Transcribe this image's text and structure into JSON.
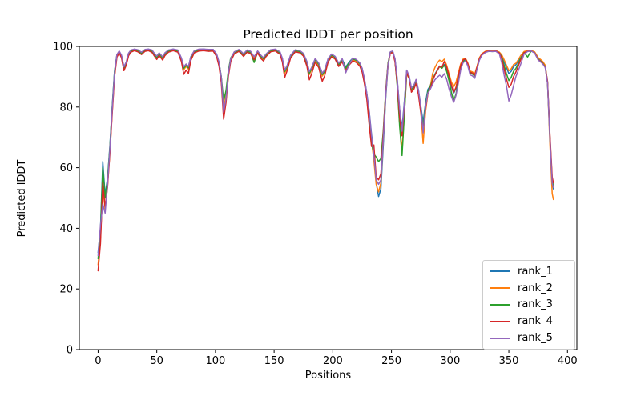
{
  "figure": {
    "title": "Predicted lDDT per position",
    "xlabel": "Positions",
    "ylabel": "Predicted lDDT"
  },
  "chart_data": {
    "type": "line",
    "title": "Predicted lDDT per position",
    "xlabel": "Positions",
    "ylabel": "Predicted lDDT",
    "xlim": [
      -16,
      408
    ],
    "ylim": [
      0,
      100
    ],
    "xticks": [
      0,
      50,
      100,
      150,
      200,
      250,
      300,
      350,
      400
    ],
    "yticks": [
      0,
      20,
      40,
      60,
      80,
      100
    ],
    "grid": false,
    "legend_position": "lower right",
    "x": [
      0,
      2,
      4,
      6,
      8,
      10,
      12,
      14,
      16,
      18,
      20,
      22,
      24,
      26,
      28,
      31,
      34,
      37,
      40,
      43,
      46,
      48,
      50,
      52,
      55,
      57,
      60,
      64,
      68,
      71,
      73,
      75,
      77,
      79,
      82,
      86,
      90,
      94,
      98,
      101,
      103,
      105,
      107,
      109,
      111,
      113,
      116,
      120,
      124,
      127,
      130,
      133,
      136,
      139,
      141,
      143,
      147,
      151,
      155,
      157,
      159,
      161,
      164,
      168,
      172,
      175,
      178,
      180,
      182,
      185,
      188,
      191,
      193,
      196,
      199,
      202,
      205,
      208,
      211,
      214,
      217,
      220,
      223,
      225,
      227,
      229,
      231,
      233,
      235,
      237,
      239,
      241,
      243,
      245,
      247,
      249,
      251,
      253,
      255,
      257,
      259,
      261,
      263,
      265,
      267,
      269,
      271,
      273,
      275,
      277,
      279,
      281,
      283,
      285,
      287,
      289,
      291,
      293,
      295,
      297,
      299,
      301,
      303,
      305,
      307,
      309,
      311,
      313,
      315,
      317,
      319,
      321,
      323,
      325,
      327,
      330,
      333,
      336,
      339,
      342,
      344,
      346,
      348,
      350,
      352,
      354,
      356,
      358,
      360,
      363,
      366,
      369,
      372,
      375,
      377,
      379,
      381,
      383,
      385,
      387,
      388
    ],
    "series": [
      {
        "name": "rank_1",
        "color": "#1f77b4",
        "values": [
          32,
          40,
          62,
          51,
          56.5,
          67,
          80,
          91.8,
          97.2,
          98.4,
          97,
          93.2,
          94.8,
          97.7,
          98.7,
          99.1,
          98.8,
          98,
          98.9,
          99.1,
          98.7,
          97.6,
          96.7,
          97.8,
          96.5,
          97.8,
          98.7,
          99.1,
          98.7,
          96.1,
          93.2,
          94.1,
          93.3,
          96.5,
          98.5,
          99,
          99.1,
          98.9,
          99,
          97.4,
          94.8,
          89.9,
          79,
          83.4,
          91.3,
          95.9,
          98.1,
          98.9,
          97.5,
          98.7,
          98.3,
          96.5,
          98.4,
          96.8,
          96.2,
          97.4,
          98.8,
          99,
          98.1,
          96,
          92.1,
          93.5,
          97,
          98.8,
          98.5,
          97.6,
          94.9,
          91.6,
          93,
          95.9,
          94.4,
          91.1,
          92.1,
          95.9,
          97.4,
          96.6,
          94.4,
          95.8,
          93.2,
          94.9,
          96.1,
          95.6,
          94.5,
          92.7,
          89.2,
          84.5,
          78.6,
          71,
          65,
          55,
          50.5,
          53,
          67,
          82.5,
          93.5,
          98,
          98.4,
          95.8,
          88.7,
          79,
          73,
          82,
          92,
          90.1,
          86.2,
          87,
          89,
          85.5,
          80.3,
          75,
          81.5,
          85.8,
          87,
          89,
          90.8,
          92.2,
          93.5,
          93,
          94,
          92.3,
          89.5,
          86.8,
          84.5,
          86.2,
          90,
          93.6,
          95.4,
          95.8,
          94.3,
          91.7,
          91.4,
          90.7,
          93.4,
          96.1,
          97.5,
          98.3,
          98.6,
          98.5,
          98.6,
          98,
          96.9,
          95,
          93,
          91,
          91.8,
          93.3,
          93.9,
          95.2,
          96.6,
          98.2,
          98.6,
          98.7,
          98.1,
          96.1,
          95.5,
          94.8,
          93.6,
          88.3,
          70.5,
          55.5,
          53
        ]
      },
      {
        "name": "rank_2",
        "color": "#ff7f0e",
        "values": [
          28,
          36.5,
          53,
          46.5,
          54,
          65,
          78,
          90.2,
          96.6,
          98,
          96.4,
          92.4,
          94.1,
          97.2,
          98.3,
          98.8,
          98.4,
          97.5,
          98.6,
          98.8,
          98.2,
          97.1,
          96,
          97.3,
          95.8,
          97.3,
          98.3,
          98.8,
          98.3,
          95.4,
          92.3,
          93.4,
          92.5,
          95.9,
          98.1,
          98.7,
          98.8,
          98.6,
          98.7,
          96.9,
          94.1,
          89,
          79.5,
          83.8,
          90.7,
          95.4,
          97.7,
          98.6,
          97,
          98.3,
          97.8,
          95.9,
          98,
          96.3,
          95.5,
          96.9,
          98.4,
          98.7,
          97.6,
          95.3,
          91.2,
          92.8,
          96.5,
          98.4,
          98.1,
          97.1,
          94.2,
          90.7,
          92.3,
          95.4,
          93.7,
          90.2,
          91.4,
          95.4,
          96.9,
          96.1,
          93.7,
          95.3,
          92.4,
          94.3,
          95.6,
          95.1,
          94,
          92,
          88.3,
          83.4,
          77.2,
          69,
          62.5,
          54.5,
          52,
          55,
          69,
          83.5,
          93.7,
          97.8,
          98.1,
          95.1,
          87,
          74.5,
          65.5,
          78,
          91,
          89.4,
          85.2,
          86.1,
          88.1,
          84.4,
          78.4,
          68,
          78.5,
          84.3,
          86.5,
          91,
          93,
          94.5,
          95.5,
          95,
          95.8,
          93.8,
          91,
          88.3,
          86.6,
          88.2,
          91.3,
          94.3,
          95.8,
          96.1,
          94.6,
          91.9,
          91.6,
          91,
          93.6,
          96.3,
          97.6,
          98.4,
          98.6,
          98.5,
          98.6,
          98.1,
          97.2,
          95.6,
          93.8,
          92,
          92.6,
          94,
          94.4,
          95.6,
          96.9,
          98.3,
          98.6,
          98.7,
          98.2,
          96.3,
          95.7,
          95,
          93.8,
          88,
          68,
          51.5,
          49.5
        ]
      },
      {
        "name": "rank_3",
        "color": "#2ca02c",
        "values": [
          30,
          39,
          60,
          50,
          56,
          66.5,
          79.5,
          91.4,
          97,
          98.2,
          96.7,
          92.9,
          94.5,
          97.5,
          98.5,
          98.9,
          98.6,
          97.7,
          98.7,
          98.9,
          98.5,
          97.4,
          96.4,
          97.6,
          96.2,
          97.6,
          98.5,
          98.9,
          98.5,
          95.8,
          92.8,
          93.8,
          92.9,
          96.2,
          98.3,
          98.8,
          98.9,
          98.7,
          98.8,
          97.2,
          94.6,
          90,
          82,
          85.5,
          92,
          96.2,
          98,
          98.7,
          97.3,
          98.5,
          98,
          94.7,
          98.2,
          96.6,
          95.9,
          97.2,
          98.6,
          98.8,
          97.8,
          95.7,
          91.7,
          93.2,
          96.8,
          98.6,
          98.3,
          97.4,
          94.6,
          91.2,
          92.7,
          95.7,
          94.1,
          90.7,
          91.8,
          95.7,
          97.2,
          96.4,
          94.1,
          95.6,
          92.8,
          94.7,
          95.9,
          95.4,
          94.3,
          92.4,
          88.8,
          84,
          78,
          68,
          64.5,
          63.5,
          62,
          63,
          72,
          85,
          94.5,
          98.1,
          98.3,
          95.3,
          86.5,
          73.5,
          64,
          77.5,
          91.2,
          89.8,
          85.8,
          86.6,
          88.6,
          85,
          79.5,
          73.5,
          80.5,
          85.3,
          86.7,
          89,
          90.8,
          92,
          93.3,
          92.8,
          93.8,
          91.8,
          88.6,
          85,
          82,
          84.3,
          88.8,
          92.9,
          95,
          95.5,
          93.9,
          91.2,
          90.9,
          90.2,
          93,
          95.8,
          97.2,
          98.1,
          98.4,
          98.3,
          98.4,
          97.8,
          96.4,
          93.8,
          91,
          88.7,
          89.8,
          91.8,
          92.7,
          94.3,
          96,
          98,
          96.5,
          98.5,
          97.9,
          95.7,
          95.1,
          94.4,
          93.2,
          87.8,
          70.2,
          55.8,
          54
        ]
      },
      {
        "name": "rank_4",
        "color": "#d62728",
        "values": [
          26,
          35,
          55,
          47,
          53.5,
          64.5,
          77.5,
          89.8,
          96.4,
          97.9,
          96.2,
          92,
          93.8,
          96.9,
          98.1,
          98.6,
          98.2,
          97.3,
          98.4,
          98.6,
          98,
          96.8,
          95.7,
          97,
          95.5,
          97,
          98.1,
          98.6,
          98.1,
          95,
          90.8,
          92.2,
          91.1,
          95.3,
          97.9,
          98.5,
          98.6,
          98.4,
          98.5,
          96.6,
          93.6,
          88,
          76,
          81.5,
          90,
          95,
          97.5,
          98.4,
          96.7,
          98.1,
          97.6,
          95.6,
          97.8,
          95.9,
          95.2,
          96.6,
          98.2,
          98.5,
          97.4,
          94.9,
          89.7,
          91.9,
          96.1,
          98.2,
          97.9,
          96.8,
          93.4,
          89,
          91,
          94.8,
          93,
          88.5,
          90.2,
          94.9,
          96.6,
          95.8,
          93.4,
          94.9,
          92,
          93.9,
          95.2,
          94.7,
          93.5,
          91.5,
          87.6,
          82.5,
          74,
          67,
          67.5,
          57,
          56,
          58,
          71,
          84.5,
          94,
          97.7,
          98,
          94.9,
          87.5,
          76.5,
          70.5,
          80.5,
          91.5,
          89.5,
          84.9,
          85.8,
          87.8,
          84,
          78.2,
          72,
          79.5,
          84.5,
          86,
          88.7,
          90.5,
          92,
          93.5,
          93.2,
          95,
          93.2,
          90.3,
          87.3,
          84.8,
          86.5,
          90.2,
          93.8,
          95.5,
          95.9,
          94.3,
          91.5,
          91.2,
          90.5,
          93.3,
          96,
          97.4,
          98.2,
          98.5,
          98.4,
          98.5,
          97.8,
          96,
          92.5,
          89.3,
          86.5,
          87.5,
          90,
          91.5,
          93.5,
          95.5,
          97.9,
          98.4,
          98.5,
          97.9,
          95.6,
          95,
          94.3,
          93.1,
          88.5,
          71.5,
          57,
          55
        ]
      },
      {
        "name": "rank_5",
        "color": "#9467bd",
        "values": [
          31,
          41,
          48,
          45,
          54.5,
          66,
          79,
          91,
          97.3,
          98.5,
          97.1,
          93.3,
          94.9,
          97.8,
          98.8,
          99.1,
          98.9,
          98.1,
          99,
          99.1,
          98.8,
          97.7,
          96.8,
          97.9,
          96.6,
          97.9,
          98.8,
          99.1,
          98.8,
          96.2,
          93.3,
          94.2,
          93.4,
          96.6,
          98.6,
          99.1,
          99.1,
          99,
          99,
          97.5,
          94.9,
          89.8,
          78.3,
          82.8,
          91.1,
          95.9,
          98.2,
          99,
          97.6,
          98.8,
          98.4,
          96.6,
          98.5,
          97,
          96.3,
          97.5,
          98.9,
          99.1,
          98.2,
          96.1,
          92.2,
          93.6,
          97.1,
          98.9,
          98.6,
          97.7,
          95,
          91.7,
          93.1,
          96,
          94.5,
          91.2,
          92.2,
          96,
          97.5,
          96.7,
          94.5,
          95.9,
          91.3,
          94.1,
          96.2,
          95.7,
          94.6,
          92.8,
          89.3,
          84.5,
          78.6,
          70.5,
          64.3,
          56,
          54.5,
          56,
          69,
          83.5,
          93.8,
          98.2,
          98.5,
          95.9,
          89,
          79.5,
          72,
          81.5,
          92.2,
          90.3,
          86.3,
          87.1,
          89.1,
          85.6,
          80.2,
          71.5,
          80,
          84.6,
          85.8,
          87.5,
          89,
          89.8,
          90.5,
          89.9,
          91,
          89.2,
          86,
          83.5,
          81.5,
          83.8,
          88,
          92.3,
          94.6,
          95.2,
          93.6,
          90.6,
          90.3,
          89.5,
          92.6,
          95.5,
          97.1,
          98,
          98.4,
          98.3,
          98.4,
          97.5,
          94.5,
          90.5,
          87,
          82,
          84,
          87,
          90,
          92,
          94,
          97.5,
          98.3,
          98.5,
          97.8,
          95.5,
          94.9,
          94.2,
          93,
          87.7,
          69.8,
          54.8,
          53.5
        ]
      }
    ]
  }
}
